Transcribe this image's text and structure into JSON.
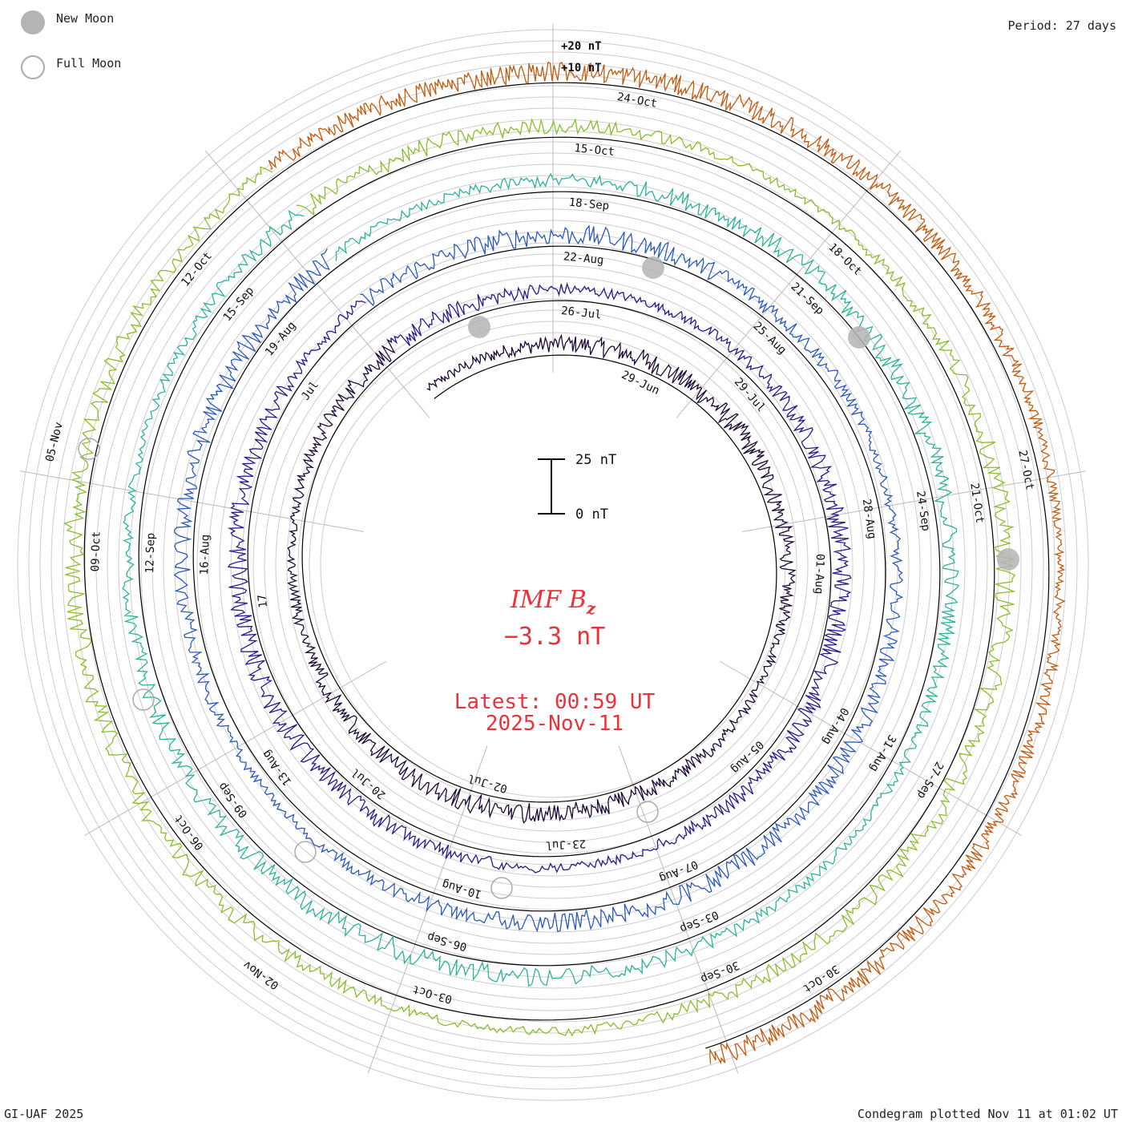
{
  "header": {
    "period_label": "Period: 27 days"
  },
  "legend": {
    "new_moon_label": "New Moon",
    "full_moon_label": "Full Moon"
  },
  "reference_labels": {
    "plus20": "+20 nT",
    "plus10": "+10 nT"
  },
  "scale_bar": {
    "top_label": "25 nT",
    "bottom_label": "0 nT"
  },
  "center": {
    "title": "IMF B",
    "title_sub": "z",
    "value": "−3.3 nT",
    "latest_time": "Latest: 00:59 UT",
    "latest_date": "2025-Nov-11"
  },
  "footer": {
    "credit": "GI-UAF 2025",
    "plotted": "Condegram plotted Nov 11 at 01:02 UT"
  },
  "colors": {
    "accent_text": "#e8323c",
    "moon_fill": "#b4b4b4",
    "grid": "#c8c8c8"
  },
  "chart_data": {
    "type": "line",
    "subtype": "spiral condegram",
    "period_days": 27,
    "units": "nT",
    "center_reading": -3.3,
    "latest": "2025-Nov-11 00:59 UT",
    "rings": [
      {
        "color": "#1c0a35",
        "dates": [
          "29-Jun",
          "02-Jul"
        ]
      },
      {
        "color": "#2a1a8e",
        "dates": [
          "26-Jul",
          "29-Jul",
          "01-Aug",
          "05-Aug",
          "23-Jul",
          "20-Jul",
          "17",
          "Jul"
        ]
      },
      {
        "color": "#2b59c0",
        "dates": [
          "22-Aug",
          "25-Aug",
          "28-Aug",
          "04-Aug",
          "07-Aug",
          "10-Aug",
          "13-Aug",
          "16-Aug",
          "19-Aug"
        ]
      },
      {
        "color": "#2bb39a",
        "dates": [
          "18-Sep",
          "21-Sep",
          "24-Sep",
          "31-Aug",
          "03-Sep",
          "06-Sep",
          "09-Sep",
          "12-Sep",
          "15-Sep"
        ]
      },
      {
        "color": "#8cbd2a",
        "dates": [
          "15-Oct",
          "18-Oct",
          "21-Oct",
          "27-Sep",
          "30-Sep",
          "03-Oct",
          "06-Oct",
          "09-Oct",
          "12-Oct"
        ]
      },
      {
        "color": "#c25a10",
        "dates": [
          "24-Oct",
          "27-Oct",
          "30-Oct",
          "02-Nov",
          "05-Nov"
        ]
      }
    ],
    "new_moons": [
      "25-Jul",
      "23-Aug",
      "21-Sep",
      "21-Oct"
    ],
    "full_moons": [
      "10-Jul",
      "09-Aug",
      "07-Sep",
      "07-Oct",
      "05-Nov"
    ]
  }
}
